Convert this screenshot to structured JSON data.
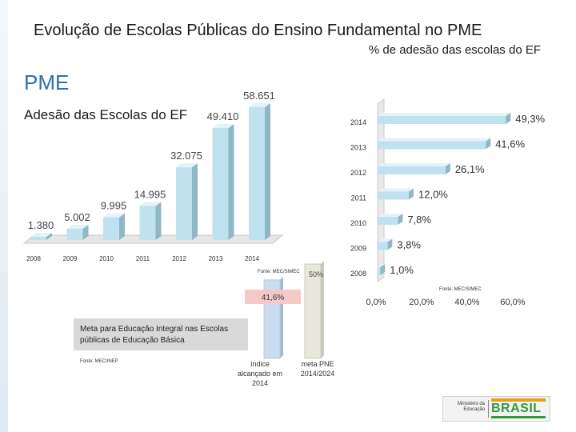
{
  "title": "Evolução de Escolas Públicas do Ensino Fundamental no PME",
  "subtitle": "% de adesão das escolas do EF",
  "pme_label": "PME",
  "adesao_label": "Adesão das Escolas do EF",
  "meta_text": "Meta para Educação Integral nas Escolas públicas de Educação Básica",
  "fonte_simec": "Fonte: MEC/SIMEC",
  "fonte_inep": "Fonte: MEC/INEP",
  "logo": {
    "ministry": "Ministério da Educação",
    "brand": "BRASIL"
  },
  "colors": {
    "bar_fill": "#bfe2ee",
    "bar_side": "#8fb7c6",
    "accent_blue": "#2b6fb6",
    "meta_label_bg": "#f6c9c9",
    "meta_bar": "#e8e8da",
    "indice_bar": "#c9dcf0"
  },
  "chart_data": [
    {
      "type": "bar",
      "categories": [
        "2008",
        "2009",
        "2010",
        "2011",
        "2012",
        "2013",
        "2014"
      ],
      "values": [
        1380,
        5002,
        9995,
        14995,
        32075,
        49410,
        58651
      ],
      "labels": [
        "1.380",
        "5.002",
        "9.995",
        "14.995",
        "32.075",
        "49.410",
        "58.651"
      ],
      "ylim": [
        0,
        60000
      ]
    },
    {
      "type": "bar",
      "orientation": "horizontal",
      "categories": [
        "2014",
        "2013",
        "2012",
        "2011",
        "2010",
        "2009",
        "2008"
      ],
      "values": [
        49.3,
        41.6,
        26.1,
        12.0,
        7.8,
        3.8,
        1.0
      ],
      "labels": [
        "49,3%",
        "41,6%",
        "26,1%",
        "12,0%",
        "7,8%",
        "3,8%",
        "1,0%"
      ],
      "xlim": [
        0,
        60
      ],
      "xticks": [
        "0,0%",
        "20,0%",
        "40,0%",
        "60,0%"
      ]
    },
    {
      "type": "bar",
      "categories": [
        "índice alcançado em 2014",
        "meta PNE 2014/2024"
      ],
      "values": [
        41.6,
        50
      ],
      "labels": [
        "41,6%",
        "50%"
      ]
    }
  ]
}
